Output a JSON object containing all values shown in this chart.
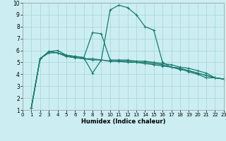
{
  "xlabel": "Humidex (Indice chaleur)",
  "bg_color": "#cceef2",
  "grid_color": "#aad8de",
  "line_color": "#1a7a6e",
  "xlim": [
    0,
    23
  ],
  "ylim": [
    1,
    10
  ],
  "xticks": [
    0,
    1,
    2,
    3,
    4,
    5,
    6,
    7,
    8,
    9,
    10,
    11,
    12,
    13,
    14,
    15,
    16,
    17,
    18,
    19,
    20,
    21,
    22,
    23
  ],
  "yticks": [
    1,
    2,
    3,
    4,
    5,
    6,
    7,
    8,
    9,
    10
  ],
  "lines": [
    {
      "x": [
        1,
        2,
        3,
        4,
        5,
        6,
        7,
        8,
        9,
        10,
        11,
        12,
        13,
        14,
        15,
        16,
        17,
        18,
        19,
        20,
        21,
        22,
        23
      ],
      "y": [
        1.2,
        5.3,
        5.9,
        5.8,
        5.6,
        5.5,
        5.4,
        4.1,
        5.2,
        9.4,
        9.8,
        9.6,
        9.0,
        8.0,
        7.7,
        5.0,
        4.6,
        4.5,
        4.2,
        4.0,
        3.7,
        3.7,
        3.6
      ]
    },
    {
      "x": [
        1,
        2,
        3,
        4,
        5,
        6,
        7,
        8,
        9,
        10,
        11,
        12,
        13,
        14,
        15,
        16,
        17,
        18,
        19,
        20,
        21,
        22,
        23
      ],
      "y": [
        1.2,
        5.3,
        5.9,
        6.0,
        5.6,
        5.5,
        5.4,
        7.5,
        7.4,
        5.2,
        5.2,
        5.2,
        5.1,
        5.1,
        5.0,
        4.9,
        4.8,
        4.6,
        4.5,
        4.3,
        4.1,
        3.7,
        3.6
      ]
    },
    {
      "x": [
        1,
        2,
        3,
        4,
        5,
        6,
        7,
        8,
        9,
        10,
        11,
        12,
        13,
        14,
        15,
        16,
        17,
        18,
        19,
        20,
        21,
        22,
        23
      ],
      "y": [
        1.2,
        5.3,
        5.8,
        5.8,
        5.5,
        5.4,
        5.3,
        5.3,
        5.2,
        5.1,
        5.1,
        5.1,
        5.0,
        5.0,
        4.9,
        4.8,
        4.6,
        4.5,
        4.3,
        4.1,
        3.9,
        3.7,
        3.6
      ]
    },
    {
      "x": [
        1,
        2,
        3,
        4,
        5,
        6,
        7,
        8,
        9,
        10,
        11,
        12,
        13,
        14,
        15,
        16,
        17,
        18,
        19,
        20,
        21,
        22,
        23
      ],
      "y": [
        1.2,
        5.3,
        5.9,
        5.8,
        5.5,
        5.4,
        5.3,
        5.2,
        5.2,
        5.1,
        5.1,
        5.0,
        5.0,
        4.9,
        4.8,
        4.7,
        4.6,
        4.4,
        4.3,
        4.1,
        3.9,
        3.7,
        3.6
      ]
    }
  ]
}
